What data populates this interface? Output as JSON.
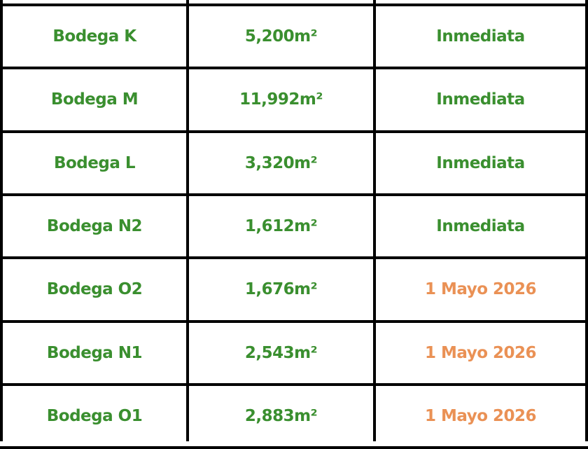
{
  "colors": {
    "available": "#3a8f2f",
    "future": "#ea9155",
    "border": "#000000"
  },
  "rows": [
    {
      "name": "Bodega K",
      "area": "5,200m²",
      "availability": "Inmediata",
      "status": "available"
    },
    {
      "name": "Bodega M",
      "area": "11,992m²",
      "availability": "Inmediata",
      "status": "available"
    },
    {
      "name": "Bodega L",
      "area": "3,320m²",
      "availability": "Inmediata",
      "status": "available"
    },
    {
      "name": "Bodega N2",
      "area": "1,612m²",
      "availability": "Inmediata",
      "status": "available"
    },
    {
      "name": "Bodega O2",
      "area": "1,676m²",
      "availability": "1 Mayo 2026",
      "status": "future"
    },
    {
      "name": "Bodega N1",
      "area": "2,543m²",
      "availability": "1 Mayo 2026",
      "status": "future"
    },
    {
      "name": "Bodega O1",
      "area": "2,883m²",
      "availability": "1 Mayo 2026",
      "status": "future"
    }
  ]
}
